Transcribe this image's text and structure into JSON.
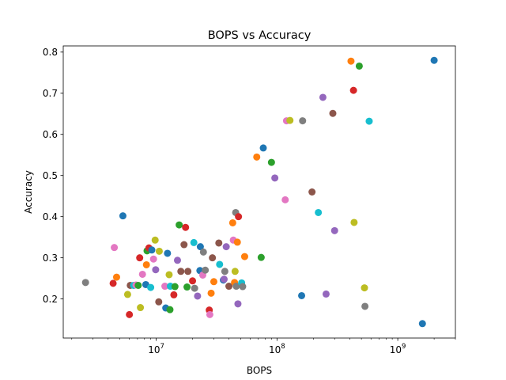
{
  "chart_data": {
    "type": "scatter",
    "title": "BOPS vs Accuracy",
    "xlabel": "BOPS",
    "ylabel": "Accuracy",
    "xscale": "log",
    "xlim": [
      1700000,
      3000000000
    ],
    "ylim": [
      0.105,
      0.815
    ],
    "grid": false,
    "legend": "none",
    "x_ticks": [
      {
        "value": 10000000,
        "mantissa": "10",
        "exponent": "7"
      },
      {
        "value": 100000000,
        "mantissa": "10",
        "exponent": "8"
      },
      {
        "value": 1000000000,
        "mantissa": "10",
        "exponent": "9"
      }
    ],
    "y_ticks": [
      {
        "value": 0.2,
        "label": "0.2"
      },
      {
        "value": 0.3,
        "label": "0.3"
      },
      {
        "value": 0.4,
        "label": "0.4"
      },
      {
        "value": 0.5,
        "label": "0.5"
      },
      {
        "value": 0.6,
        "label": "0.6"
      },
      {
        "value": 0.7,
        "label": "0.7"
      },
      {
        "value": 0.8,
        "label": "0.8"
      }
    ],
    "colors": [
      "#1f77b4",
      "#ff7f0e",
      "#2ca02c",
      "#d62728",
      "#9467bd",
      "#8c564b",
      "#e377c2",
      "#7f7f7f",
      "#bcbd22",
      "#17becf"
    ],
    "points": [
      {
        "x": 2600000.0,
        "y": 0.24,
        "color": "#7f7f7f"
      },
      {
        "x": 4400000.0,
        "y": 0.238,
        "color": "#d62728"
      },
      {
        "x": 4500000.0,
        "y": 0.325,
        "color": "#e377c2"
      },
      {
        "x": 4700000.0,
        "y": 0.253,
        "color": "#ff7f0e"
      },
      {
        "x": 5300000.0,
        "y": 0.402,
        "color": "#1f77b4"
      },
      {
        "x": 5800000.0,
        "y": 0.211,
        "color": "#bcbd22"
      },
      {
        "x": 6000000.0,
        "y": 0.162,
        "color": "#d62728"
      },
      {
        "x": 6100000.0,
        "y": 0.233,
        "color": "#8c564b"
      },
      {
        "x": 6500000.0,
        "y": 0.233,
        "color": "#17becf"
      },
      {
        "x": 6800000.0,
        "y": 0.234,
        "color": "#e377c2"
      },
      {
        "x": 7100000.0,
        "y": 0.233,
        "color": "#2ca02c"
      },
      {
        "x": 7300000.0,
        "y": 0.3,
        "color": "#d62728"
      },
      {
        "x": 7400000.0,
        "y": 0.179,
        "color": "#bcbd22"
      },
      {
        "x": 7700000.0,
        "y": 0.26,
        "color": "#e377c2"
      },
      {
        "x": 8200000.0,
        "y": 0.235,
        "color": "#1f77b4"
      },
      {
        "x": 8300000.0,
        "y": 0.283,
        "color": "#ff7f0e"
      },
      {
        "x": 8400000.0,
        "y": 0.317,
        "color": "#2ca02c"
      },
      {
        "x": 8700000.0,
        "y": 0.324,
        "color": "#d62728"
      },
      {
        "x": 9000000.0,
        "y": 0.228,
        "color": "#17becf"
      },
      {
        "x": 9200000.0,
        "y": 0.319,
        "color": "#1f77b4"
      },
      {
        "x": 9500000.0,
        "y": 0.297,
        "color": "#e377c2"
      },
      {
        "x": 9800000.0,
        "y": 0.343,
        "color": "#bcbd22"
      },
      {
        "x": 9900000.0,
        "y": 0.271,
        "color": "#9467bd"
      },
      {
        "x": 10500000.0,
        "y": 0.193,
        "color": "#8c564b"
      },
      {
        "x": 10600000.0,
        "y": 0.316,
        "color": "#bcbd22"
      },
      {
        "x": 11800000.0,
        "y": 0.231,
        "color": "#e377c2"
      },
      {
        "x": 12000000.0,
        "y": 0.178,
        "color": "#1f77b4"
      },
      {
        "x": 12400000.0,
        "y": 0.311,
        "color": "#1f77b4"
      },
      {
        "x": 12800000.0,
        "y": 0.259,
        "color": "#bcbd22"
      },
      {
        "x": 13000000.0,
        "y": 0.174,
        "color": "#2ca02c"
      },
      {
        "x": 13100000.0,
        "y": 0.231,
        "color": "#17becf"
      },
      {
        "x": 14000000.0,
        "y": 0.21,
        "color": "#d62728"
      },
      {
        "x": 14300000.0,
        "y": 0.23,
        "color": "#2ca02c"
      },
      {
        "x": 15000000.0,
        "y": 0.294,
        "color": "#9467bd"
      },
      {
        "x": 15500000.0,
        "y": 0.38,
        "color": "#2ca02c"
      },
      {
        "x": 16000000.0,
        "y": 0.267,
        "color": "#8c564b"
      },
      {
        "x": 17000000.0,
        "y": 0.332,
        "color": "#8c564b"
      },
      {
        "x": 17500000.0,
        "y": 0.374,
        "color": "#d62728"
      },
      {
        "x": 18000000.0,
        "y": 0.229,
        "color": "#2ca02c"
      },
      {
        "x": 18300000.0,
        "y": 0.267,
        "color": "#8c564b"
      },
      {
        "x": 20000000.0,
        "y": 0.244,
        "color": "#d62728"
      },
      {
        "x": 20500000.0,
        "y": 0.337,
        "color": "#17becf"
      },
      {
        "x": 20800000.0,
        "y": 0.226,
        "color": "#7f7f7f"
      },
      {
        "x": 22000000.0,
        "y": 0.207,
        "color": "#9467bd"
      },
      {
        "x": 23000000.0,
        "y": 0.269,
        "color": "#1f77b4"
      },
      {
        "x": 23200000.0,
        "y": 0.327,
        "color": "#1f77b4"
      },
      {
        "x": 24300000.0,
        "y": 0.258,
        "color": "#e377c2"
      },
      {
        "x": 24600000.0,
        "y": 0.314,
        "color": "#7f7f7f"
      },
      {
        "x": 25500000.0,
        "y": 0.27,
        "color": "#7f7f7f"
      },
      {
        "x": 27500000.0,
        "y": 0.173,
        "color": "#d62728"
      },
      {
        "x": 27800000.0,
        "y": 0.162,
        "color": "#e377c2"
      },
      {
        "x": 28500000.0,
        "y": 0.214,
        "color": "#ff7f0e"
      },
      {
        "x": 29200000.0,
        "y": 0.3,
        "color": "#8c564b"
      },
      {
        "x": 30000000.0,
        "y": 0.242,
        "color": "#ff7f0e"
      },
      {
        "x": 33000000.0,
        "y": 0.336,
        "color": "#8c564b"
      },
      {
        "x": 33500000.0,
        "y": 0.284,
        "color": "#17becf"
      },
      {
        "x": 36000000.0,
        "y": 0.246,
        "color": "#1f77b4"
      },
      {
        "x": 36500000.0,
        "y": 0.248,
        "color": "#9467bd"
      },
      {
        "x": 37000000.0,
        "y": 0.267,
        "color": "#7f7f7f"
      },
      {
        "x": 38000000.0,
        "y": 0.327,
        "color": "#9467bd"
      },
      {
        "x": 40000000.0,
        "y": 0.231,
        "color": "#8c564b"
      },
      {
        "x": 43000000.0,
        "y": 0.385,
        "color": "#ff7f0e"
      },
      {
        "x": 43500000.0,
        "y": 0.343,
        "color": "#e377c2"
      },
      {
        "x": 44500000.0,
        "y": 0.24,
        "color": "#ff7f0e"
      },
      {
        "x": 45000000.0,
        "y": 0.267,
        "color": "#bcbd22"
      },
      {
        "x": 45500000.0,
        "y": 0.41,
        "color": "#7f7f7f"
      },
      {
        "x": 46000000.0,
        "y": 0.231,
        "color": "#7f7f7f"
      },
      {
        "x": 47000000.0,
        "y": 0.338,
        "color": "#ff7f0e"
      },
      {
        "x": 47500000.0,
        "y": 0.188,
        "color": "#9467bd"
      },
      {
        "x": 48000000.0,
        "y": 0.4,
        "color": "#d62728"
      },
      {
        "x": 51000000.0,
        "y": 0.239,
        "color": "#17becf"
      },
      {
        "x": 52000000.0,
        "y": 0.23,
        "color": "#7f7f7f"
      },
      {
        "x": 54000000.0,
        "y": 0.303,
        "color": "#ff7f0e"
      },
      {
        "x": 68000000.0,
        "y": 0.545,
        "color": "#ff7f0e"
      },
      {
        "x": 74000000.0,
        "y": 0.301,
        "color": "#2ca02c"
      },
      {
        "x": 77000000.0,
        "y": 0.567,
        "color": "#1f77b4"
      },
      {
        "x": 90000000.0,
        "y": 0.532,
        "color": "#2ca02c"
      },
      {
        "x": 96000000.0,
        "y": 0.494,
        "color": "#9467bd"
      },
      {
        "x": 117000000.0,
        "y": 0.441,
        "color": "#e377c2"
      },
      {
        "x": 120000000.0,
        "y": 0.633,
        "color": "#e377c2"
      },
      {
        "x": 128000000.0,
        "y": 0.634,
        "color": "#bcbd22"
      },
      {
        "x": 160000000.0,
        "y": 0.208,
        "color": "#1f77b4"
      },
      {
        "x": 163000000.0,
        "y": 0.633,
        "color": "#7f7f7f"
      },
      {
        "x": 195000000.0,
        "y": 0.46,
        "color": "#8c564b"
      },
      {
        "x": 220000000.0,
        "y": 0.41,
        "color": "#17becf"
      },
      {
        "x": 240000000.0,
        "y": 0.69,
        "color": "#9467bd"
      },
      {
        "x": 255000000.0,
        "y": 0.212,
        "color": "#9467bd"
      },
      {
        "x": 290000000.0,
        "y": 0.651,
        "color": "#8c564b"
      },
      {
        "x": 300000000.0,
        "y": 0.366,
        "color": "#9467bd"
      },
      {
        "x": 410000000.0,
        "y": 0.778,
        "color": "#ff7f0e"
      },
      {
        "x": 430000000.0,
        "y": 0.707,
        "color": "#d62728"
      },
      {
        "x": 435000000.0,
        "y": 0.386,
        "color": "#bcbd22"
      },
      {
        "x": 480000000.0,
        "y": 0.766,
        "color": "#2ca02c"
      },
      {
        "x": 530000000.0,
        "y": 0.227,
        "color": "#bcbd22"
      },
      {
        "x": 535000000.0,
        "y": 0.182,
        "color": "#7f7f7f"
      },
      {
        "x": 580000000.0,
        "y": 0.632,
        "color": "#17becf"
      },
      {
        "x": 1600000000.0,
        "y": 0.14,
        "color": "#1f77b4"
      },
      {
        "x": 2000000000.0,
        "y": 0.78,
        "color": "#1f77b4"
      }
    ]
  }
}
